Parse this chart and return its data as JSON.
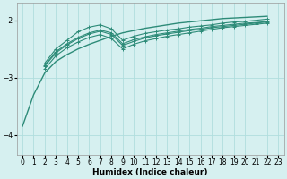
{
  "xlabel": "Humidex (Indice chaleur)",
  "bg_color": "#d6f0f0",
  "line_color": "#2d8b78",
  "grid_color": "#b0dede",
  "xlim": [
    -0.5,
    23.5
  ],
  "ylim": [
    -4.35,
    -1.7
  ],
  "yticks": [
    -4,
    -3,
    -2
  ],
  "xticks": [
    0,
    1,
    2,
    3,
    4,
    5,
    6,
    7,
    8,
    9,
    10,
    11,
    12,
    13,
    14,
    15,
    16,
    17,
    18,
    19,
    20,
    21,
    22,
    23
  ],
  "series": [
    {
      "x": [
        0,
        1,
        2,
        3,
        4,
        5,
        6,
        7,
        8,
        9,
        10,
        11,
        12,
        13,
        14,
        15,
        16,
        17,
        18,
        19,
        20,
        21,
        22
      ],
      "y": [
        -3.85,
        -3.3,
        -2.92,
        -2.72,
        -2.6,
        -2.5,
        -2.42,
        -2.35,
        -2.28,
        -2.22,
        -2.18,
        -2.14,
        -2.11,
        -2.08,
        -2.05,
        -2.03,
        -2.01,
        -1.99,
        -1.97,
        -1.96,
        -1.95,
        -1.94,
        -1.93
      ],
      "marker": false
    },
    {
      "x": [
        2,
        3,
        4,
        5,
        6,
        7,
        8,
        9,
        10,
        11,
        12,
        13,
        14,
        15,
        16,
        17,
        18,
        19,
        20,
        21,
        22
      ],
      "y": [
        -2.75,
        -2.5,
        -2.35,
        -2.2,
        -2.12,
        -2.08,
        -2.15,
        -2.35,
        -2.28,
        -2.23,
        -2.2,
        -2.17,
        -2.15,
        -2.12,
        -2.1,
        -2.08,
        -2.05,
        -2.03,
        -2.02,
        -2.0,
        -1.98
      ],
      "marker": true
    },
    {
      "x": [
        2,
        3,
        4,
        5,
        6,
        7,
        8,
        9,
        10,
        11,
        12,
        13,
        14,
        15,
        16,
        17,
        18,
        19,
        20,
        21,
        22
      ],
      "y": [
        -2.85,
        -2.62,
        -2.48,
        -2.38,
        -2.3,
        -2.25,
        -2.32,
        -2.5,
        -2.42,
        -2.36,
        -2.32,
        -2.28,
        -2.25,
        -2.22,
        -2.19,
        -2.16,
        -2.13,
        -2.11,
        -2.09,
        -2.07,
        -2.05
      ],
      "marker": true
    },
    {
      "x": [
        2,
        3,
        4,
        5,
        6,
        7,
        8,
        9,
        10,
        11,
        12,
        13,
        14,
        15,
        16,
        17,
        18,
        19,
        20,
        21,
        22
      ],
      "y": [
        -2.8,
        -2.57,
        -2.43,
        -2.32,
        -2.24,
        -2.19,
        -2.25,
        -2.44,
        -2.37,
        -2.31,
        -2.27,
        -2.24,
        -2.21,
        -2.18,
        -2.16,
        -2.13,
        -2.11,
        -2.09,
        -2.07,
        -2.05,
        -2.03
      ],
      "marker": true
    },
    {
      "x": [
        2,
        3,
        4,
        5,
        6,
        7,
        8,
        9,
        10,
        11,
        12,
        13,
        14,
        15,
        16,
        17,
        18,
        19,
        20,
        21,
        22
      ],
      "y": [
        -2.78,
        -2.55,
        -2.41,
        -2.3,
        -2.22,
        -2.17,
        -2.22,
        -2.41,
        -2.34,
        -2.29,
        -2.25,
        -2.22,
        -2.19,
        -2.16,
        -2.14,
        -2.11,
        -2.09,
        -2.07,
        -2.05,
        -2.04,
        -2.02
      ],
      "marker": true
    }
  ]
}
